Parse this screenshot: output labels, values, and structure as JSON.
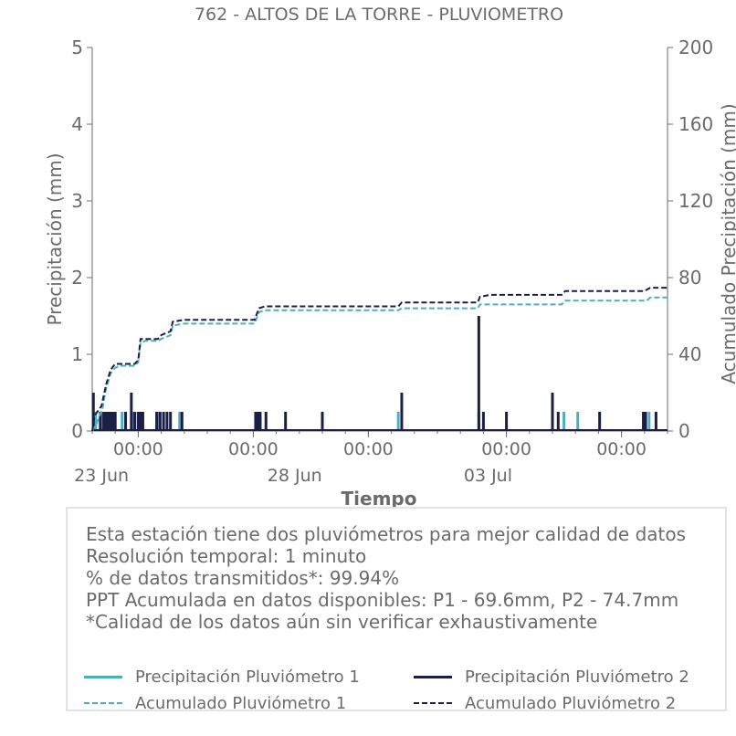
{
  "chart_data": {
    "type": "bar+line",
    "title": "762 - ALTOS DE LA TORRE - PLUVIOMETRO",
    "xlabel": "Tiempo",
    "ylabel_left": "Precipitación (mm)",
    "ylabel_right": "Acumulado Precipitación (mm)",
    "ylim_left": [
      0,
      5
    ],
    "ylim_right": [
      0,
      200
    ],
    "yticks_left": [
      "0",
      "1",
      "2",
      "3",
      "4",
      "5"
    ],
    "yticks_right": [
      "0",
      "40",
      "80",
      "120",
      "160",
      "200"
    ],
    "xlim_days": [
      0,
      25
    ],
    "xticks": [
      {
        "day": 2,
        "label": "00:00",
        "sub": ""
      },
      {
        "day": 7,
        "label": "00:00",
        "sub": ""
      },
      {
        "day": 12,
        "label": "00:00",
        "sub": ""
      },
      {
        "day": 18,
        "label": "00:00",
        "sub": ""
      },
      {
        "day": 23,
        "label": "00:00",
        "sub": ""
      }
    ],
    "date_labels": [
      {
        "day": 0.4,
        "label": "23 Jun"
      },
      {
        "day": 8.8,
        "label": "28 Jun"
      },
      {
        "day": 17.2,
        "label": "03 Jul"
      }
    ],
    "colors": {
      "p1": "#4ab0c1",
      "p2": "#1c1f45"
    },
    "series": [
      {
        "name": "Precipitación Pluviómetro 1",
        "kind": "bar",
        "points": [
          [
            0.15,
            0.25
          ],
          [
            0.45,
            0.25
          ],
          [
            0.65,
            0.25
          ],
          [
            0.85,
            0.25
          ],
          [
            1.3,
            0.25
          ],
          [
            1.8,
            0.25
          ],
          [
            2.9,
            0.25
          ],
          [
            3.8,
            0.25
          ],
          [
            7.2,
            0.25
          ],
          [
            13.3,
            0.25
          ],
          [
            16.8,
            0.25
          ],
          [
            20.5,
            0.25
          ],
          [
            21.1,
            0.25
          ],
          [
            24.2,
            0.25
          ]
        ]
      },
      {
        "name": "Precipitación Pluviómetro 2",
        "kind": "bar",
        "points": [
          [
            0.05,
            0.5
          ],
          [
            0.35,
            0.25
          ],
          [
            0.5,
            0.25
          ],
          [
            0.6,
            0.25
          ],
          [
            0.7,
            0.25
          ],
          [
            0.8,
            0.25
          ],
          [
            0.9,
            0.25
          ],
          [
            1.0,
            0.25
          ],
          [
            1.45,
            0.25
          ],
          [
            1.7,
            0.5
          ],
          [
            1.85,
            0.25
          ],
          [
            2.0,
            0.25
          ],
          [
            2.1,
            0.25
          ],
          [
            2.2,
            0.25
          ],
          [
            2.8,
            0.25
          ],
          [
            2.95,
            0.25
          ],
          [
            3.1,
            0.25
          ],
          [
            3.25,
            0.25
          ],
          [
            3.4,
            0.25
          ],
          [
            3.9,
            0.25
          ],
          [
            7.1,
            0.25
          ],
          [
            7.2,
            0.25
          ],
          [
            7.3,
            0.25
          ],
          [
            7.55,
            0.25
          ],
          [
            8.4,
            0.25
          ],
          [
            10.0,
            0.25
          ],
          [
            13.45,
            0.5
          ],
          [
            16.8,
            1.5
          ],
          [
            17.0,
            0.25
          ],
          [
            18.0,
            0.25
          ],
          [
            20.0,
            0.5
          ],
          [
            20.25,
            0.25
          ],
          [
            22.05,
            0.25
          ],
          [
            23.95,
            0.25
          ],
          [
            24.05,
            0.25
          ],
          [
            24.5,
            0.25
          ]
        ]
      },
      {
        "name": "Acumulado Pluviómetro 1",
        "kind": "line",
        "style": "dashed",
        "points": [
          [
            0,
            0
          ],
          [
            0.2,
            4
          ],
          [
            0.45,
            12
          ],
          [
            0.6,
            22
          ],
          [
            0.8,
            30
          ],
          [
            1.0,
            33
          ],
          [
            1.2,
            34
          ],
          [
            1.85,
            34
          ],
          [
            2.0,
            36
          ],
          [
            2.1,
            46
          ],
          [
            2.3,
            47
          ],
          [
            2.85,
            47
          ],
          [
            3.0,
            48
          ],
          [
            3.4,
            50
          ],
          [
            3.5,
            55
          ],
          [
            4.0,
            56
          ],
          [
            7.05,
            56
          ],
          [
            7.25,
            62
          ],
          [
            7.5,
            63
          ],
          [
            13.3,
            63
          ],
          [
            13.45,
            64
          ],
          [
            16.75,
            64
          ],
          [
            16.85,
            66
          ],
          [
            20.4,
            66
          ],
          [
            20.55,
            68
          ],
          [
            24.1,
            68
          ],
          [
            24.25,
            69.6
          ],
          [
            25,
            69.6
          ]
        ]
      },
      {
        "name": "Acumulado Pluviómetro 2",
        "kind": "line",
        "style": "dashed",
        "points": [
          [
            0,
            0
          ],
          [
            0.1,
            8
          ],
          [
            0.4,
            13
          ],
          [
            0.6,
            24
          ],
          [
            0.8,
            32
          ],
          [
            1.0,
            35
          ],
          [
            1.2,
            35
          ],
          [
            1.85,
            35
          ],
          [
            2.0,
            37
          ],
          [
            2.1,
            48
          ],
          [
            2.3,
            48
          ],
          [
            2.85,
            48
          ],
          [
            3.0,
            50
          ],
          [
            3.4,
            52
          ],
          [
            3.5,
            57
          ],
          [
            4.0,
            58
          ],
          [
            7.05,
            58
          ],
          [
            7.25,
            64
          ],
          [
            7.5,
            65
          ],
          [
            13.3,
            65
          ],
          [
            13.45,
            67
          ],
          [
            16.75,
            67
          ],
          [
            16.85,
            70
          ],
          [
            17.3,
            71
          ],
          [
            20.4,
            71
          ],
          [
            20.55,
            73
          ],
          [
            24.0,
            73
          ],
          [
            24.25,
            74.7
          ],
          [
            25,
            74.7
          ]
        ]
      }
    ]
  },
  "info": {
    "lines": [
      "Esta estación tiene dos pluviómetros para mejor calidad de datos",
      "Resolución temporal: 1 minuto",
      "% de datos transmitidos*: 99.94%",
      "PPT Acumulada en datos disponibles: P1 - 69.6mm, P2 - 74.7mm",
      "*Calidad de los datos aún sin verificar exhaustivamente"
    ]
  },
  "legend": [
    {
      "label": "Precipitación Pluviómetro 1",
      "color": "#4ab0c1",
      "style": "solid"
    },
    {
      "label": "Precipitación Pluviómetro 2",
      "color": "#1c1f45",
      "style": "solid"
    },
    {
      "label": "Acumulado Pluviómetro 1",
      "color": "#4ab0c1",
      "style": "dashed"
    },
    {
      "label": "Acumulado Pluviómetro 2",
      "color": "#1c1f45",
      "style": "dashed"
    }
  ]
}
